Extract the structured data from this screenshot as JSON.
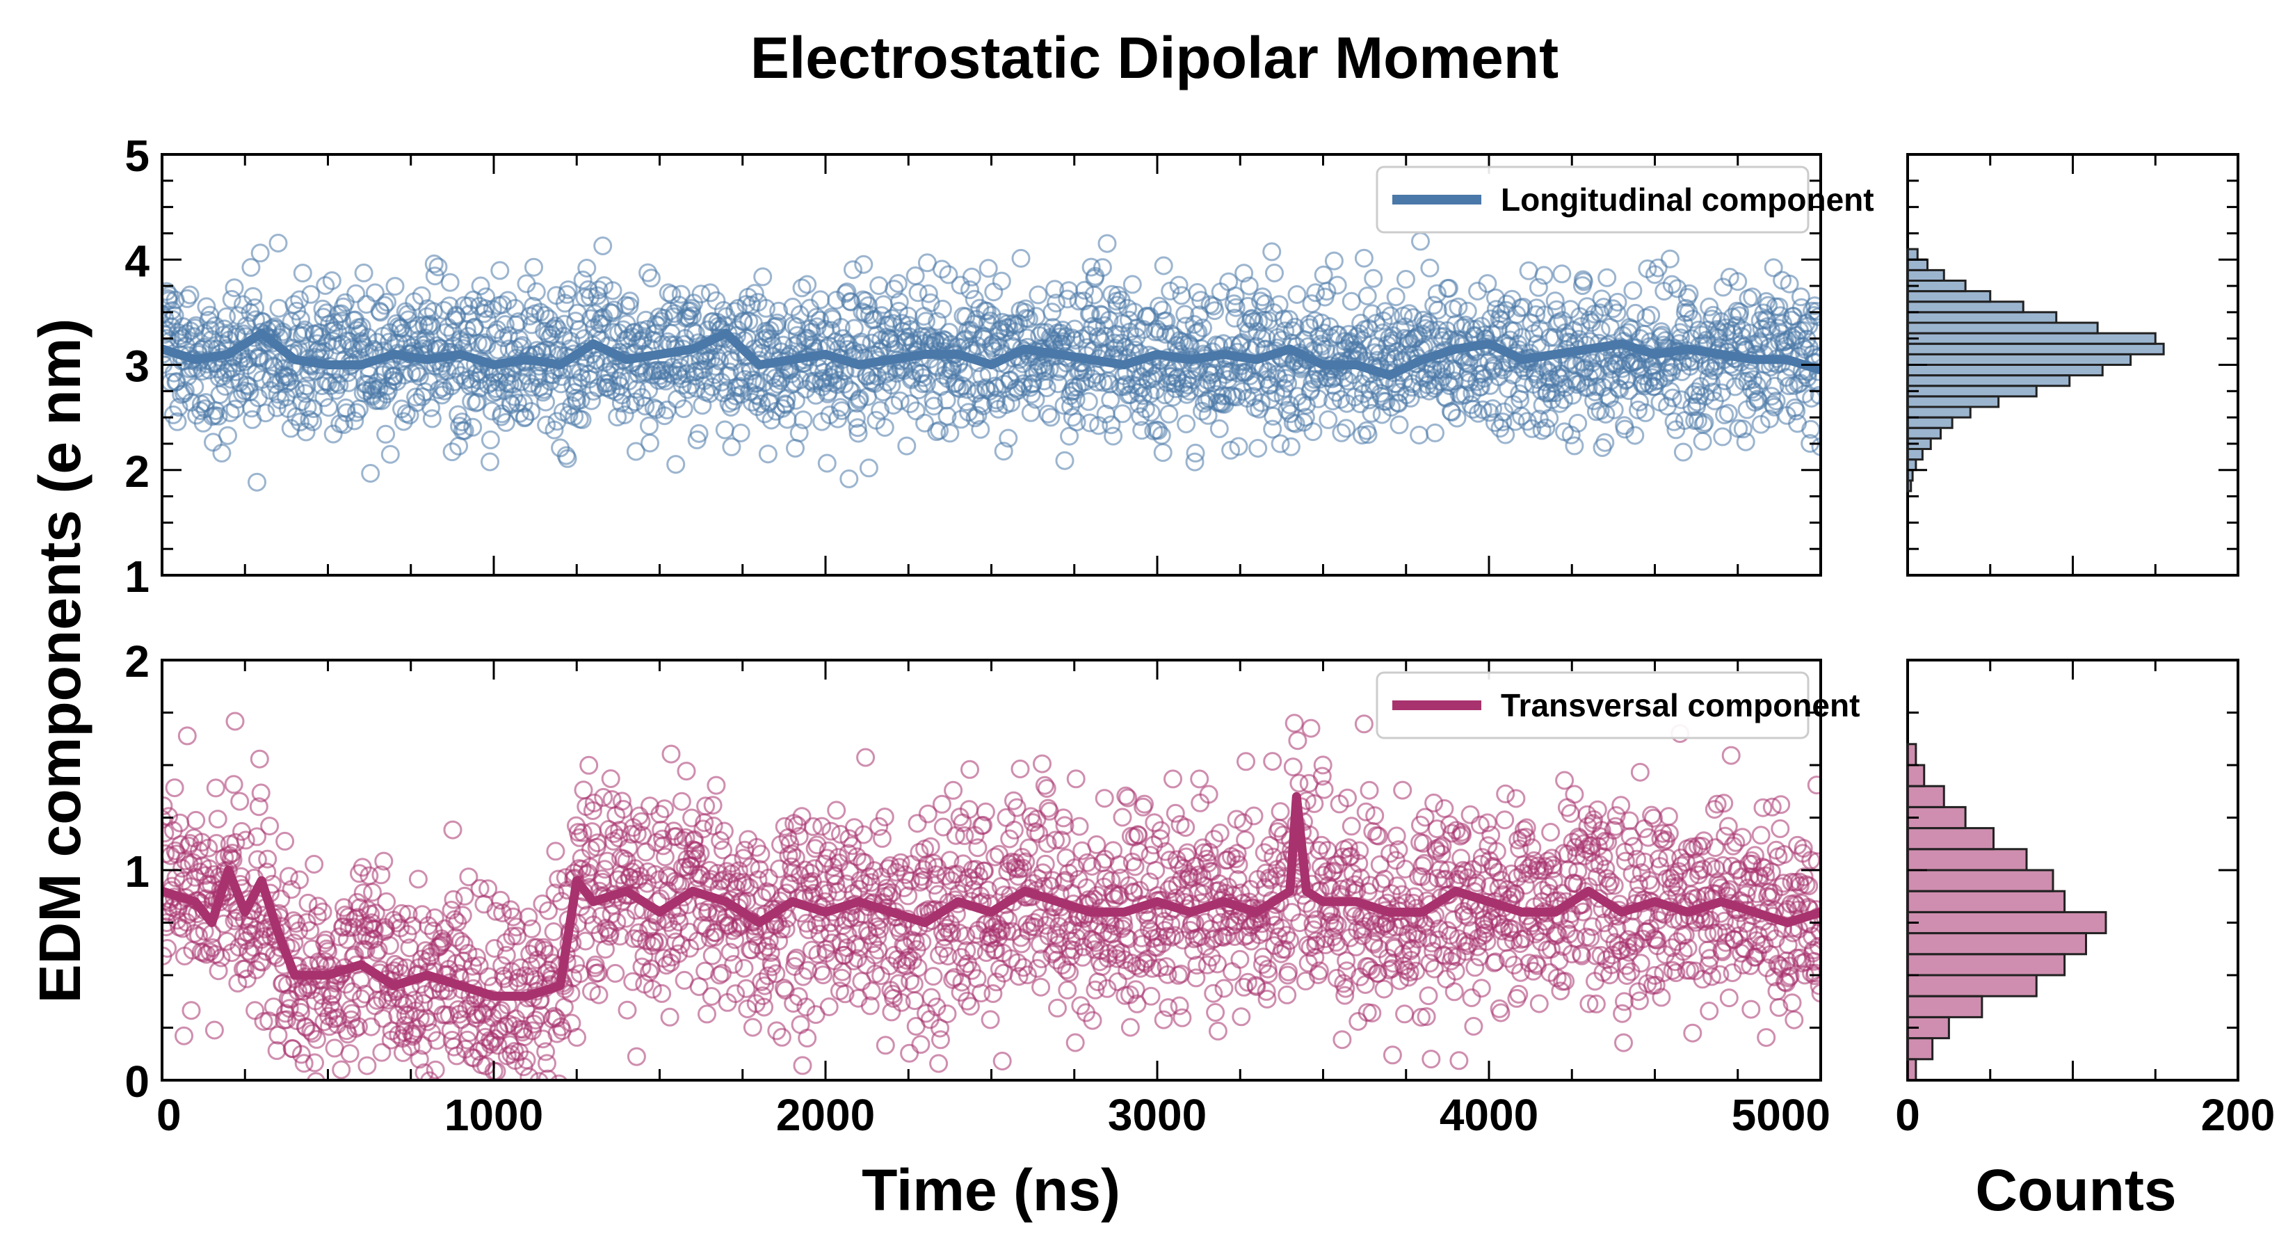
{
  "chart_data": {
    "type": "scatter",
    "title": "Electrostatic Dipolar Moment",
    "ylabel": "EDM components (e nm)",
    "xlabel": "Time (ns)",
    "hist_xlabel": "Counts",
    "xlim": [
      0,
      5000
    ],
    "x_ticks": [
      "0",
      "1000",
      "2000",
      "3000",
      "4000",
      "5000"
    ],
    "hist_xlim": [
      0,
      200
    ],
    "hist_ticks": [
      "0",
      "200"
    ],
    "grid": false,
    "legend_position": "top-right",
    "panels": [
      {
        "id": "longitudinal",
        "series_name": "Longitudinal component",
        "color": "#4a78a8",
        "ylim": [
          1,
          5
        ],
        "y_ticks": [
          "1",
          "2",
          "3",
          "4",
          "5"
        ],
        "scatter_mean": 3.05,
        "scatter_sd": 0.36,
        "running_mean": [
          [
            0,
            3.15
          ],
          [
            100,
            3.05
          ],
          [
            200,
            3.1
          ],
          [
            300,
            3.3
          ],
          [
            400,
            3.05
          ],
          [
            500,
            3.0
          ],
          [
            600,
            3.0
          ],
          [
            700,
            3.1
          ],
          [
            800,
            3.05
          ],
          [
            900,
            3.1
          ],
          [
            1000,
            3.0
          ],
          [
            1100,
            3.05
          ],
          [
            1200,
            3.0
          ],
          [
            1300,
            3.2
          ],
          [
            1400,
            3.05
          ],
          [
            1500,
            3.1
          ],
          [
            1600,
            3.15
          ],
          [
            1700,
            3.3
          ],
          [
            1800,
            3.0
          ],
          [
            1900,
            3.05
          ],
          [
            2000,
            3.1
          ],
          [
            2100,
            3.0
          ],
          [
            2200,
            3.05
          ],
          [
            2300,
            3.1
          ],
          [
            2400,
            3.1
          ],
          [
            2500,
            3.0
          ],
          [
            2600,
            3.15
          ],
          [
            2700,
            3.1
          ],
          [
            2800,
            3.05
          ],
          [
            2900,
            3.0
          ],
          [
            3000,
            3.1
          ],
          [
            3100,
            3.05
          ],
          [
            3200,
            3.1
          ],
          [
            3300,
            3.05
          ],
          [
            3400,
            3.15
          ],
          [
            3500,
            3.0
          ],
          [
            3600,
            3.0
          ],
          [
            3700,
            2.9
          ],
          [
            3800,
            3.05
          ],
          [
            3900,
            3.15
          ],
          [
            4000,
            3.2
          ],
          [
            4100,
            3.05
          ],
          [
            4200,
            3.1
          ],
          [
            4300,
            3.15
          ],
          [
            4400,
            3.2
          ],
          [
            4500,
            3.1
          ],
          [
            4600,
            3.15
          ],
          [
            4700,
            3.1
          ],
          [
            4800,
            3.05
          ],
          [
            4900,
            3.05
          ],
          [
            5000,
            2.95
          ]
        ],
        "histogram_bins": [
          [
            1.85,
            2
          ],
          [
            1.95,
            3
          ],
          [
            2.05,
            5
          ],
          [
            2.15,
            9
          ],
          [
            2.25,
            14
          ],
          [
            2.35,
            20
          ],
          [
            2.45,
            27
          ],
          [
            2.55,
            38
          ],
          [
            2.65,
            55
          ],
          [
            2.75,
            78
          ],
          [
            2.85,
            98
          ],
          [
            2.95,
            118
          ],
          [
            3.05,
            135
          ],
          [
            3.15,
            155
          ],
          [
            3.25,
            150
          ],
          [
            3.35,
            115
          ],
          [
            3.45,
            90
          ],
          [
            3.55,
            70
          ],
          [
            3.65,
            50
          ],
          [
            3.75,
            35
          ],
          [
            3.85,
            22
          ],
          [
            3.95,
            12
          ],
          [
            4.05,
            6
          ]
        ]
      },
      {
        "id": "transversal",
        "series_name": "Transversal component",
        "color": "#a8326e",
        "ylim": [
          0,
          2
        ],
        "y_ticks": [
          "0",
          "1",
          "2"
        ],
        "scatter_sd": 0.25,
        "running_mean": [
          [
            0,
            0.9
          ],
          [
            100,
            0.85
          ],
          [
            150,
            0.75
          ],
          [
            200,
            1.0
          ],
          [
            250,
            0.8
          ],
          [
            300,
            0.95
          ],
          [
            350,
            0.7
          ],
          [
            400,
            0.5
          ],
          [
            500,
            0.5
          ],
          [
            600,
            0.55
          ],
          [
            700,
            0.45
          ],
          [
            800,
            0.5
          ],
          [
            900,
            0.45
          ],
          [
            1000,
            0.4
          ],
          [
            1100,
            0.4
          ],
          [
            1200,
            0.45
          ],
          [
            1250,
            0.95
          ],
          [
            1300,
            0.85
          ],
          [
            1400,
            0.9
          ],
          [
            1500,
            0.8
          ],
          [
            1600,
            0.9
          ],
          [
            1700,
            0.85
          ],
          [
            1800,
            0.75
          ],
          [
            1900,
            0.85
          ],
          [
            2000,
            0.8
          ],
          [
            2100,
            0.85
          ],
          [
            2200,
            0.8
          ],
          [
            2300,
            0.75
          ],
          [
            2400,
            0.85
          ],
          [
            2500,
            0.8
          ],
          [
            2600,
            0.9
          ],
          [
            2700,
            0.85
          ],
          [
            2800,
            0.8
          ],
          [
            2900,
            0.8
          ],
          [
            3000,
            0.85
          ],
          [
            3100,
            0.8
          ],
          [
            3200,
            0.85
          ],
          [
            3300,
            0.8
          ],
          [
            3400,
            0.9
          ],
          [
            3420,
            1.35
          ],
          [
            3450,
            0.9
          ],
          [
            3500,
            0.85
          ],
          [
            3600,
            0.85
          ],
          [
            3700,
            0.8
          ],
          [
            3800,
            0.8
          ],
          [
            3900,
            0.9
          ],
          [
            4000,
            0.85
          ],
          [
            4100,
            0.8
          ],
          [
            4200,
            0.8
          ],
          [
            4300,
            0.9
          ],
          [
            4400,
            0.8
          ],
          [
            4500,
            0.85
          ],
          [
            4600,
            0.8
          ],
          [
            4700,
            0.85
          ],
          [
            4800,
            0.8
          ],
          [
            4900,
            0.75
          ],
          [
            5000,
            0.8
          ]
        ],
        "histogram_bins": [
          [
            0.05,
            5
          ],
          [
            0.15,
            15
          ],
          [
            0.25,
            25
          ],
          [
            0.35,
            45
          ],
          [
            0.45,
            78
          ],
          [
            0.55,
            95
          ],
          [
            0.65,
            108
          ],
          [
            0.75,
            120
          ],
          [
            0.85,
            95
          ],
          [
            0.95,
            88
          ],
          [
            1.05,
            72
          ],
          [
            1.15,
            52
          ],
          [
            1.25,
            35
          ],
          [
            1.35,
            22
          ],
          [
            1.45,
            10
          ],
          [
            1.55,
            5
          ]
        ]
      }
    ]
  }
}
